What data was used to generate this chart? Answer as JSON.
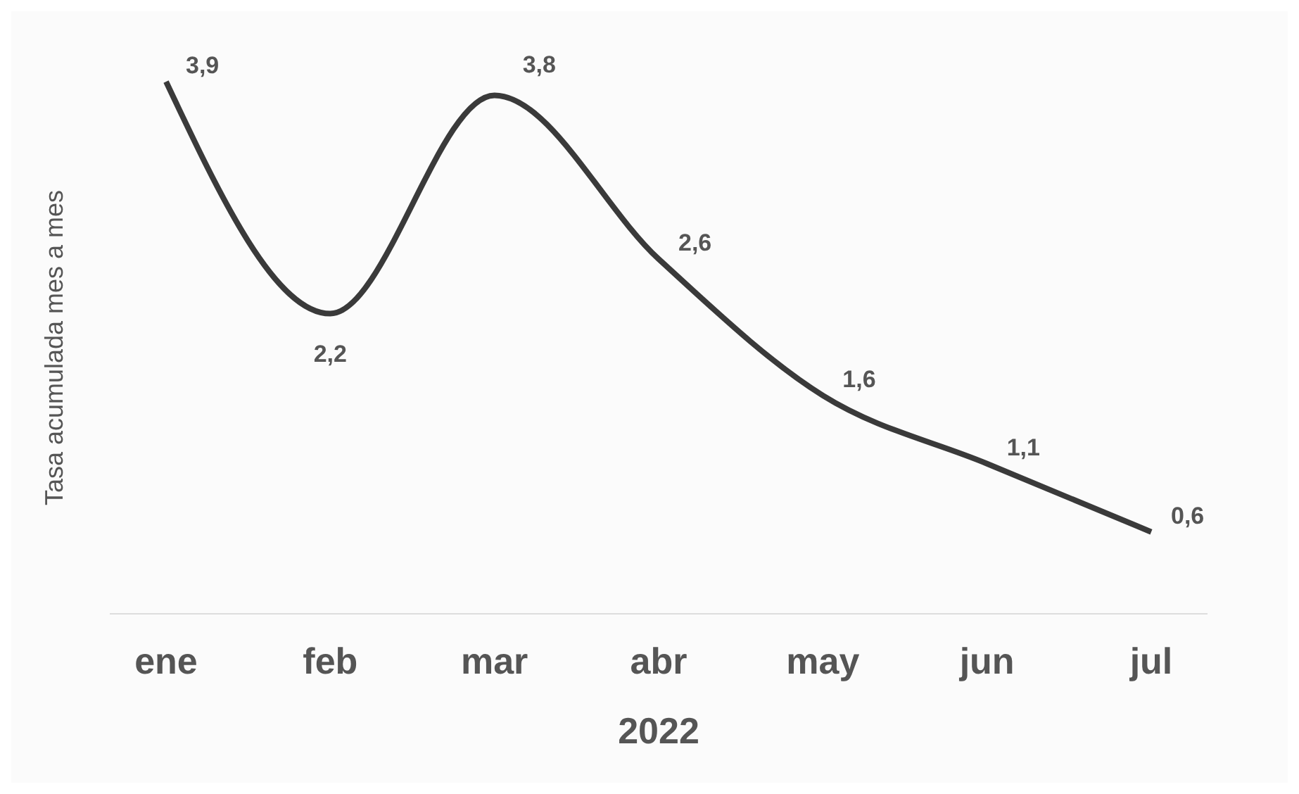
{
  "chart_data": {
    "type": "line",
    "xlabel": "2022",
    "ylabel": "Tasa acumulada mes a mes",
    "categories": [
      "ene",
      "feb",
      "mar",
      "abr",
      "may",
      "jun",
      "jul"
    ],
    "series": [
      {
        "color": "#3a3a3a",
        "values": [
          3.9,
          2.2,
          3.8,
          2.6,
          1.6,
          1.1,
          0.6
        ],
        "value_labels": [
          "3,9",
          "2,2",
          "3,8",
          "2,6",
          "1,6",
          "1,1",
          "0,6"
        ]
      }
    ],
    "grid": false,
    "legend": false,
    "marker": "none",
    "line_style": "solid"
  }
}
